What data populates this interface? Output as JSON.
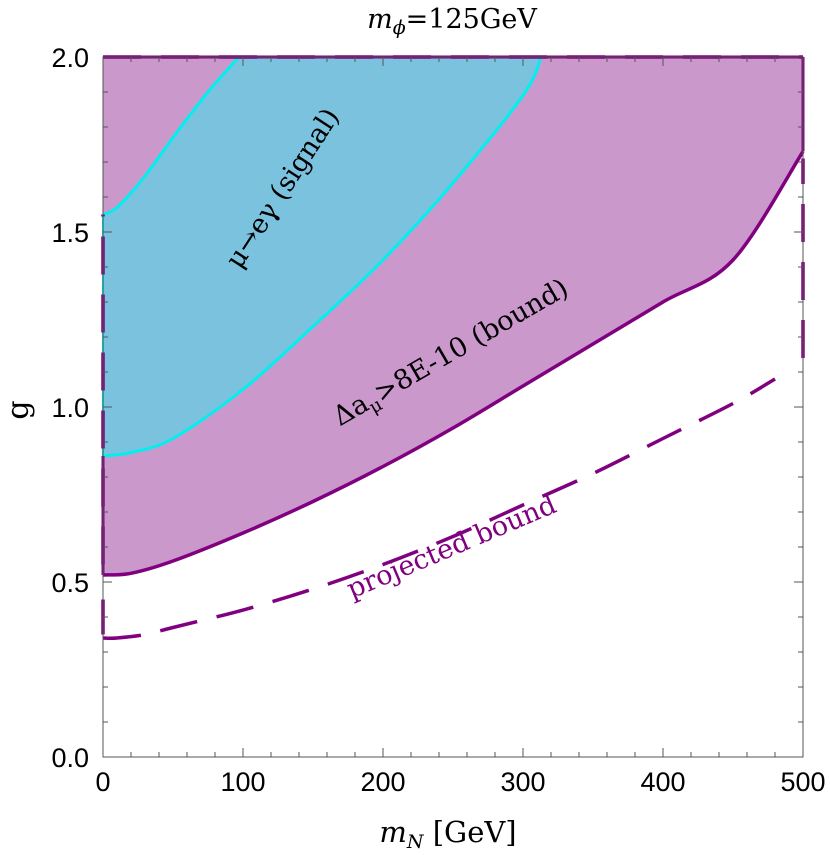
{
  "chart_data": {
    "type": "area",
    "title": "m_ϕ=125GeV",
    "title_parts": {
      "sym": "m",
      "sub": "ϕ",
      "rest": "=125GeV"
    },
    "xlabel": "m_N [GeV]",
    "xlabel_parts": {
      "sym": "m",
      "sub": "N",
      "rest": " [GeV]"
    },
    "ylabel": "g",
    "xlim": [
      0,
      500
    ],
    "ylim": [
      0,
      2
    ],
    "x_ticks": [
      0,
      100,
      200,
      300,
      400,
      500
    ],
    "x_tick_labels": [
      "0",
      "100",
      "200",
      "300",
      "400",
      "500"
    ],
    "y_ticks": [
      0.0,
      0.5,
      1.0,
      1.5,
      2.0
    ],
    "y_tick_labels": [
      "0.0",
      "0.5",
      "1.0",
      "1.5",
      "2.0"
    ],
    "grid": false,
    "colors": {
      "bound_fill": "#cb98cc",
      "bound_line": "#800080",
      "signal_fill": "#7bc2df",
      "signal_line": "#00f0f0",
      "projected_line": "#800080"
    },
    "series": [
      {
        "name": "Δa_μ>8E-10 (bound)",
        "kind": "filled-region-above-curve",
        "x": [
          0,
          20,
          50,
          100,
          150,
          200,
          250,
          300,
          350,
          400,
          450,
          500
        ],
        "y": [
          0.52,
          0.525,
          0.56,
          0.64,
          0.73,
          0.83,
          0.94,
          1.06,
          1.18,
          1.3,
          1.42,
          1.73
        ]
      },
      {
        "name": "μ→eγ (signal)",
        "kind": "filled-region-between-curves",
        "lower": {
          "x": [
            0,
            20,
            50,
            100,
            150,
            200,
            250,
            300,
            313
          ],
          "y": [
            0.86,
            0.87,
            0.91,
            1.05,
            1.23,
            1.42,
            1.64,
            1.89,
            2.0
          ]
        },
        "upper": {
          "x": [
            0,
            10,
            30,
            50,
            75,
            97
          ],
          "y": [
            1.55,
            1.57,
            1.66,
            1.77,
            1.9,
            2.0
          ]
        }
      },
      {
        "name": "projected bound",
        "kind": "dashed-curve",
        "x": [
          0,
          10,
          30,
          50,
          100,
          150,
          200,
          250,
          300,
          350,
          400,
          450,
          480
        ],
        "y": [
          0.34,
          0.34,
          0.35,
          0.37,
          0.42,
          0.48,
          0.55,
          0.63,
          0.72,
          0.81,
          0.91,
          1.01,
          1.08
        ]
      },
      {
        "name": "projected bound edge",
        "kind": "dashed-segments",
        "segments": [
          {
            "x": [
              0,
              0
            ],
            "y": [
              0.35,
              0.45
            ]
          },
          {
            "x": [
              0,
              0
            ],
            "y": [
              0.55,
              1.55
            ]
          },
          {
            "x": [
              500,
              500
            ],
            "y": [
              1.14,
              1.71
            ]
          },
          {
            "x": [
              0,
              500
            ],
            "y": [
              2.0,
              2.0
            ]
          }
        ]
      }
    ],
    "annotations": [
      {
        "text": "μ→eγ (signal)",
        "parts": {
          "pre": "μ→eγ (signal)"
        }
      },
      {
        "text": "Δa_μ>8E-10 (bound)",
        "parts": {
          "pre": "Δa",
          "sub": "μ",
          "post": ">8E-10 (bound)"
        }
      },
      {
        "text": "projected bound",
        "parts": {
          "pre": "projected bound"
        }
      }
    ]
  }
}
